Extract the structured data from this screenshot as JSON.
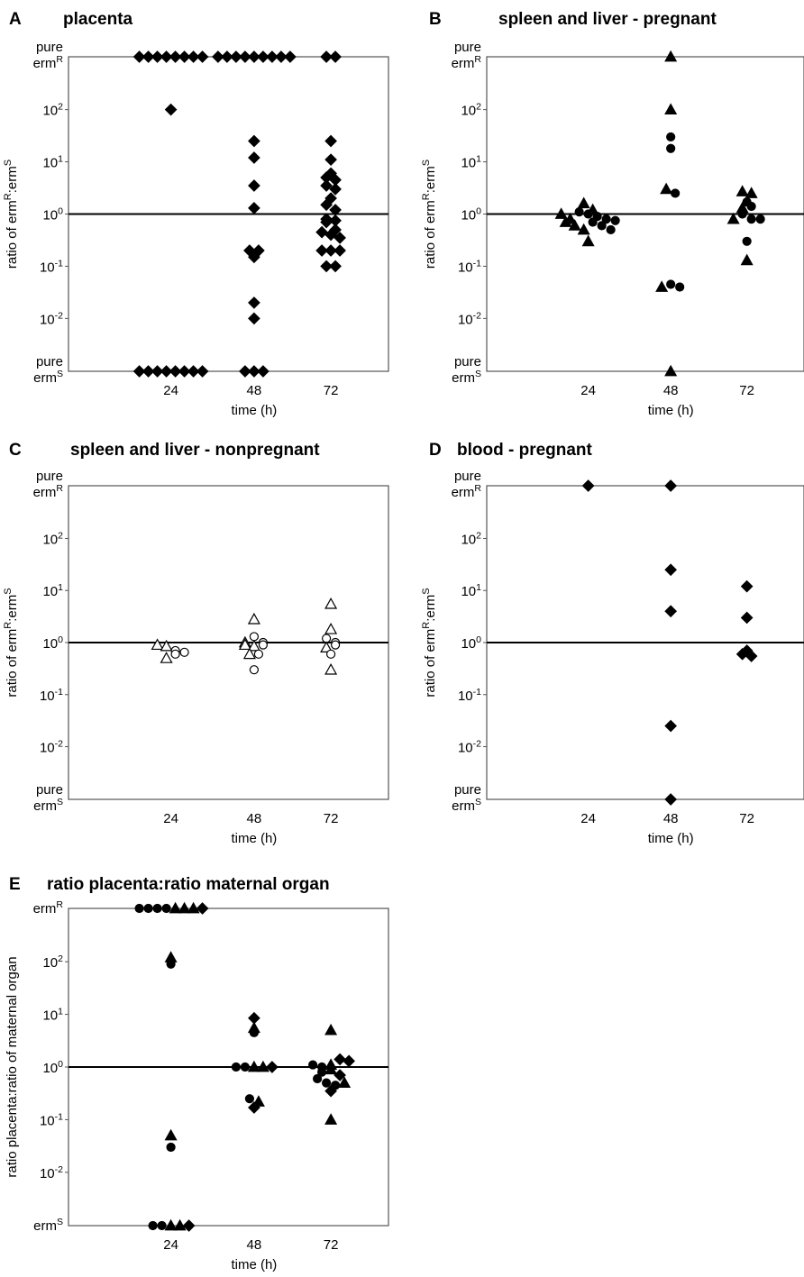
{
  "figure": {
    "xlabel": "time (h)",
    "top_label": "pure",
    "top_sub": "erm",
    "top_sup": "R",
    "bottom_label": "pure",
    "bottom_sub": "erm",
    "bottom_sup": "S",
    "ylabel_main": "ratio of erm",
    "ylabel_sup1": "R",
    "ylabel_mid": ":erm",
    "ylabel_sup2": "S",
    "panelE_ylabel": "ratio placenta:ratio of maternal organ",
    "panelE_top_sub": "erm",
    "panelE_top_sup": "R",
    "panelE_bottom_sub": "erm",
    "panelE_bottom_sup": "S"
  },
  "chart_data": [
    {
      "panel_letter": "A",
      "title": "placenta",
      "type": "scatter",
      "y_scale": "log",
      "y_ticks": [
        "10^2",
        "10^1",
        "10^0",
        "10^-1",
        "10^-2"
      ],
      "y_ends": [
        "pure ermR",
        "pure ermS"
      ],
      "x_ticks": [
        "24",
        "48",
        "72"
      ],
      "reference_line": 1,
      "series": [
        {
          "marker": "diamond",
          "filled": true,
          "points": [
            {
              "x": 24,
              "y": "pure ermR",
              "n": 8
            },
            {
              "x": 24,
              "y": 100
            },
            {
              "x": 24,
              "y": "pure ermS",
              "n": 8
            },
            {
              "x": 48,
              "y": "pure ermR",
              "n": 9
            },
            {
              "x": 48,
              "y": 25
            },
            {
              "x": 48,
              "y": 12
            },
            {
              "x": 48,
              "y": 3.5
            },
            {
              "x": 48,
              "y": 1.3
            },
            {
              "x": 48,
              "y": 0.2
            },
            {
              "x": 48,
              "y": 0.2
            },
            {
              "x": 48,
              "y": 0.15
            },
            {
              "x": 48,
              "y": 0.02
            },
            {
              "x": 48,
              "y": 0.01
            },
            {
              "x": 48,
              "y": "pure ermS",
              "n": 3
            },
            {
              "x": 72,
              "y": "pure ermR",
              "n": 2
            },
            {
              "x": 72,
              "y": 25
            },
            {
              "x": 72,
              "y": 11
            },
            {
              "x": 72,
              "y": 6
            },
            {
              "x": 72,
              "y": 5
            },
            {
              "x": 72,
              "y": 4.5
            },
            {
              "x": 72,
              "y": 3.5
            },
            {
              "x": 72,
              "y": 3
            },
            {
              "x": 72,
              "y": 2
            },
            {
              "x": 72,
              "y": 1.5
            },
            {
              "x": 72,
              "y": 1.2
            },
            {
              "x": 72,
              "y": 0.8
            },
            {
              "x": 72,
              "y": 0.75
            },
            {
              "x": 72,
              "y": 0.7
            },
            {
              "x": 72,
              "y": 0.5
            },
            {
              "x": 72,
              "y": 0.45
            },
            {
              "x": 72,
              "y": 0.4
            },
            {
              "x": 72,
              "y": 0.35
            },
            {
              "x": 72,
              "y": 0.2
            },
            {
              "x": 72,
              "y": 0.2
            },
            {
              "x": 72,
              "y": 0.2
            },
            {
              "x": 72,
              "y": 0.1
            },
            {
              "x": 72,
              "y": 0.1
            }
          ]
        }
      ]
    },
    {
      "panel_letter": "B",
      "title": "spleen and liver - pregnant",
      "type": "scatter",
      "y_scale": "log",
      "y_ticks": [
        "10^2",
        "10^1",
        "10^0",
        "10^-1",
        "10^-2"
      ],
      "y_ends": [
        "pure ermR",
        "pure ermS"
      ],
      "x_ticks": [
        "24",
        "48",
        "72"
      ],
      "reference_line": 1,
      "series": [
        {
          "marker": "triangle",
          "filled": true,
          "points": [
            {
              "x": 24,
              "y": 1.6
            },
            {
              "x": 24,
              "y": 1.2
            },
            {
              "x": 24,
              "y": 1.0
            },
            {
              "x": 24,
              "y": 0.8
            },
            {
              "x": 24,
              "y": 0.7
            },
            {
              "x": 24,
              "y": 0.6
            },
            {
              "x": 24,
              "y": 0.5
            },
            {
              "x": 24,
              "y": 0.3
            },
            {
              "x": 48,
              "y": "pure ermR"
            },
            {
              "x": 48,
              "y": 100
            },
            {
              "x": 48,
              "y": 3
            },
            {
              "x": 48,
              "y": 0.04
            },
            {
              "x": 48,
              "y": "pure ermS"
            },
            {
              "x": 72,
              "y": 2.7
            },
            {
              "x": 72,
              "y": 2.5
            },
            {
              "x": 72,
              "y": 1.3
            },
            {
              "x": 72,
              "y": 0.8
            },
            {
              "x": 72,
              "y": 0.13
            }
          ]
        },
        {
          "marker": "circle",
          "filled": true,
          "points": [
            {
              "x": 24,
              "y": 1.1
            },
            {
              "x": 24,
              "y": 1.0
            },
            {
              "x": 24,
              "y": 0.9
            },
            {
              "x": 24,
              "y": 0.8
            },
            {
              "x": 24,
              "y": 0.75
            },
            {
              "x": 24,
              "y": 0.7
            },
            {
              "x": 24,
              "y": 0.6
            },
            {
              "x": 24,
              "y": 0.5
            },
            {
              "x": 48,
              "y": 30
            },
            {
              "x": 48,
              "y": 18
            },
            {
              "x": 48,
              "y": 2.5
            },
            {
              "x": 48,
              "y": 0.045
            },
            {
              "x": 48,
              "y": 0.04
            },
            {
              "x": 72,
              "y": 1.7
            },
            {
              "x": 72,
              "y": 1.4
            },
            {
              "x": 72,
              "y": 1.0
            },
            {
              "x": 72,
              "y": 0.8
            },
            {
              "x": 72,
              "y": 0.8
            },
            {
              "x": 72,
              "y": 0.3
            }
          ]
        }
      ]
    },
    {
      "panel_letter": "C",
      "title": "spleen and liver - nonpregnant",
      "type": "scatter",
      "y_scale": "log",
      "y_ticks": [
        "10^2",
        "10^1",
        "10^0",
        "10^-1",
        "10^-2"
      ],
      "y_ends": [
        "pure ermR",
        "pure ermS"
      ],
      "x_ticks": [
        "24",
        "48",
        "72"
      ],
      "reference_line": 1,
      "series": [
        {
          "marker": "triangle",
          "filled": false,
          "points": [
            {
              "x": 24,
              "y": 0.9
            },
            {
              "x": 24,
              "y": 0.85
            },
            {
              "x": 24,
              "y": 0.5
            },
            {
              "x": 48,
              "y": 2.8
            },
            {
              "x": 48,
              "y": 1.0
            },
            {
              "x": 48,
              "y": 0.9
            },
            {
              "x": 48,
              "y": 0.85
            },
            {
              "x": 48,
              "y": 0.6
            },
            {
              "x": 72,
              "y": 5.5
            },
            {
              "x": 72,
              "y": 1.8
            },
            {
              "x": 72,
              "y": 0.8
            },
            {
              "x": 72,
              "y": 0.3
            }
          ]
        },
        {
          "marker": "circle",
          "filled": false,
          "points": [
            {
              "x": 24,
              "y": 0.7
            },
            {
              "x": 24,
              "y": 0.65
            },
            {
              "x": 24,
              "y": 0.6
            },
            {
              "x": 48,
              "y": 1.3
            },
            {
              "x": 48,
              "y": 1.0
            },
            {
              "x": 48,
              "y": 0.9
            },
            {
              "x": 48,
              "y": 0.6
            },
            {
              "x": 48,
              "y": 0.3
            },
            {
              "x": 72,
              "y": 1.2
            },
            {
              "x": 72,
              "y": 1.0
            },
            {
              "x": 72,
              "y": 0.9
            },
            {
              "x": 72,
              "y": 0.6
            }
          ]
        }
      ]
    },
    {
      "panel_letter": "D",
      "title": "blood - pregnant",
      "type": "scatter",
      "y_scale": "log",
      "y_ticks": [
        "10^2",
        "10^1",
        "10^0",
        "10^-1",
        "10^-2"
      ],
      "y_ends": [
        "pure ermR",
        "pure ermS"
      ],
      "x_ticks": [
        "24",
        "48",
        "72"
      ],
      "reference_line": 1,
      "series": [
        {
          "marker": "diamond",
          "filled": true,
          "points": [
            {
              "x": 24,
              "y": "pure ermR"
            },
            {
              "x": 48,
              "y": "pure ermR"
            },
            {
              "x": 48,
              "y": 25
            },
            {
              "x": 48,
              "y": 4
            },
            {
              "x": 48,
              "y": 0.025
            },
            {
              "x": 48,
              "y": "pure ermS"
            },
            {
              "x": 72,
              "y": 12
            },
            {
              "x": 72,
              "y": 3
            },
            {
              "x": 72,
              "y": 0.7
            },
            {
              "x": 72,
              "y": 0.6
            },
            {
              "x": 72,
              "y": 0.55
            }
          ]
        }
      ]
    },
    {
      "panel_letter": "E",
      "title": "ratio placenta:ratio maternal organ",
      "type": "scatter",
      "y_scale": "log",
      "y_ticks": [
        "10^2",
        "10^1",
        "10^0",
        "10^-1",
        "10^-2"
      ],
      "y_ends": [
        "ermR",
        "ermS"
      ],
      "x_ticks": [
        "24",
        "48",
        "72"
      ],
      "reference_line": 1,
      "series": [
        {
          "marker": "circle",
          "filled": true,
          "points": [
            {
              "x": 24,
              "y": "ermR",
              "n": 4
            },
            {
              "x": 24,
              "y": 90
            },
            {
              "x": 24,
              "y": 0.03
            },
            {
              "x": 24,
              "y": "ermS",
              "n": 2
            },
            {
              "x": 48,
              "y": 4.5
            },
            {
              "x": 48,
              "y": 1
            },
            {
              "x": 48,
              "y": 1
            },
            {
              "x": 48,
              "y": 0.25
            },
            {
              "x": 72,
              "y": 1.1
            },
            {
              "x": 72,
              "y": 1.0
            },
            {
              "x": 72,
              "y": 0.8
            },
            {
              "x": 72,
              "y": 0.6
            },
            {
              "x": 72,
              "y": 0.5
            },
            {
              "x": 72,
              "y": 0.45
            }
          ]
        },
        {
          "marker": "triangle",
          "filled": true,
          "points": [
            {
              "x": 24,
              "y": "ermR",
              "n": 3
            },
            {
              "x": 24,
              "y": 120
            },
            {
              "x": 24,
              "y": 0.05
            },
            {
              "x": 24,
              "y": "ermS",
              "n": 2
            },
            {
              "x": 48,
              "y": 5.5
            },
            {
              "x": 48,
              "y": 1
            },
            {
              "x": 48,
              "y": 1
            },
            {
              "x": 48,
              "y": 0.22
            },
            {
              "x": 72,
              "y": 5
            },
            {
              "x": 72,
              "y": 1.1
            },
            {
              "x": 72,
              "y": 0.9
            },
            {
              "x": 72,
              "y": 0.5
            },
            {
              "x": 72,
              "y": 0.1
            }
          ]
        },
        {
          "marker": "diamond",
          "filled": true,
          "points": [
            {
              "x": 24,
              "y": "ermR"
            },
            {
              "x": 24,
              "y": "ermS"
            },
            {
              "x": 48,
              "y": 8.5
            },
            {
              "x": 48,
              "y": 1
            },
            {
              "x": 48,
              "y": 0.17
            },
            {
              "x": 72,
              "y": 1.4
            },
            {
              "x": 72,
              "y": 1.3
            },
            {
              "x": 72,
              "y": 0.7
            },
            {
              "x": 72,
              "y": 0.35
            }
          ]
        }
      ]
    }
  ]
}
